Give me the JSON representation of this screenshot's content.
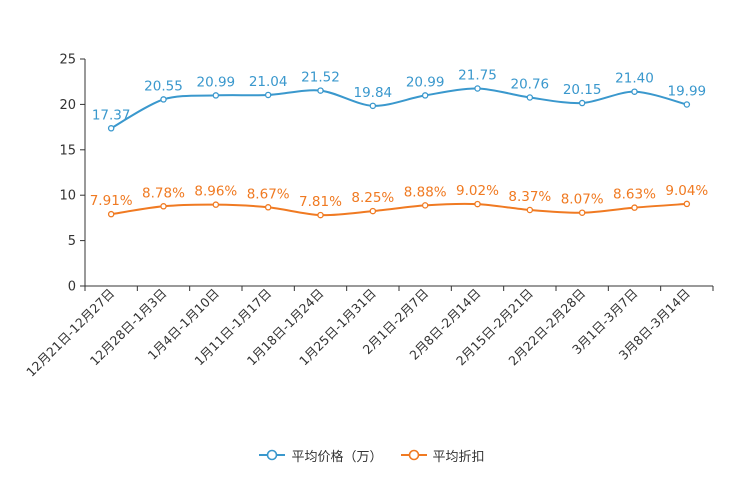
{
  "chart_data": {
    "type": "line",
    "categories": [
      "12月21日-12月27日",
      "12月28日-1月3日",
      "1月4日-1月10日",
      "1月11日-1月17日",
      "1月18日-1月24日",
      "1月25日-1月31日",
      "2月1日-2月7日",
      "2月8日-2月14日",
      "2月15日-2月21日",
      "2月22日-2月28日",
      "3月1日-3月7日",
      "3月8日-3月14日"
    ],
    "ylim": [
      0,
      25
    ],
    "yticks": [
      "0",
      "5",
      "10",
      "15",
      "20",
      "25"
    ],
    "series": [
      {
        "name": "平均价格（万）",
        "color": "#3a98cd",
        "values": [
          17.37,
          20.55,
          20.99,
          21.04,
          21.52,
          19.84,
          20.99,
          21.75,
          20.76,
          20.15,
          21.4,
          19.99
        ],
        "labels": [
          "17.37",
          "20.55",
          "20.99",
          "21.04",
          "21.52",
          "19.84",
          "20.99",
          "21.75",
          "20.76",
          "20.15",
          "21.40",
          "19.99"
        ]
      },
      {
        "name": "平均折扣",
        "color": "#f07a22",
        "values": [
          7.91,
          8.78,
          8.96,
          8.67,
          7.81,
          8.25,
          8.88,
          9.02,
          8.37,
          8.07,
          8.63,
          9.04
        ],
        "labels": [
          "7.91%",
          "8.78%",
          "8.96%",
          "8.67%",
          "7.81%",
          "8.25%",
          "8.88%",
          "9.02%",
          "8.37%",
          "8.07%",
          "8.63%",
          "9.04%"
        ]
      }
    ]
  }
}
